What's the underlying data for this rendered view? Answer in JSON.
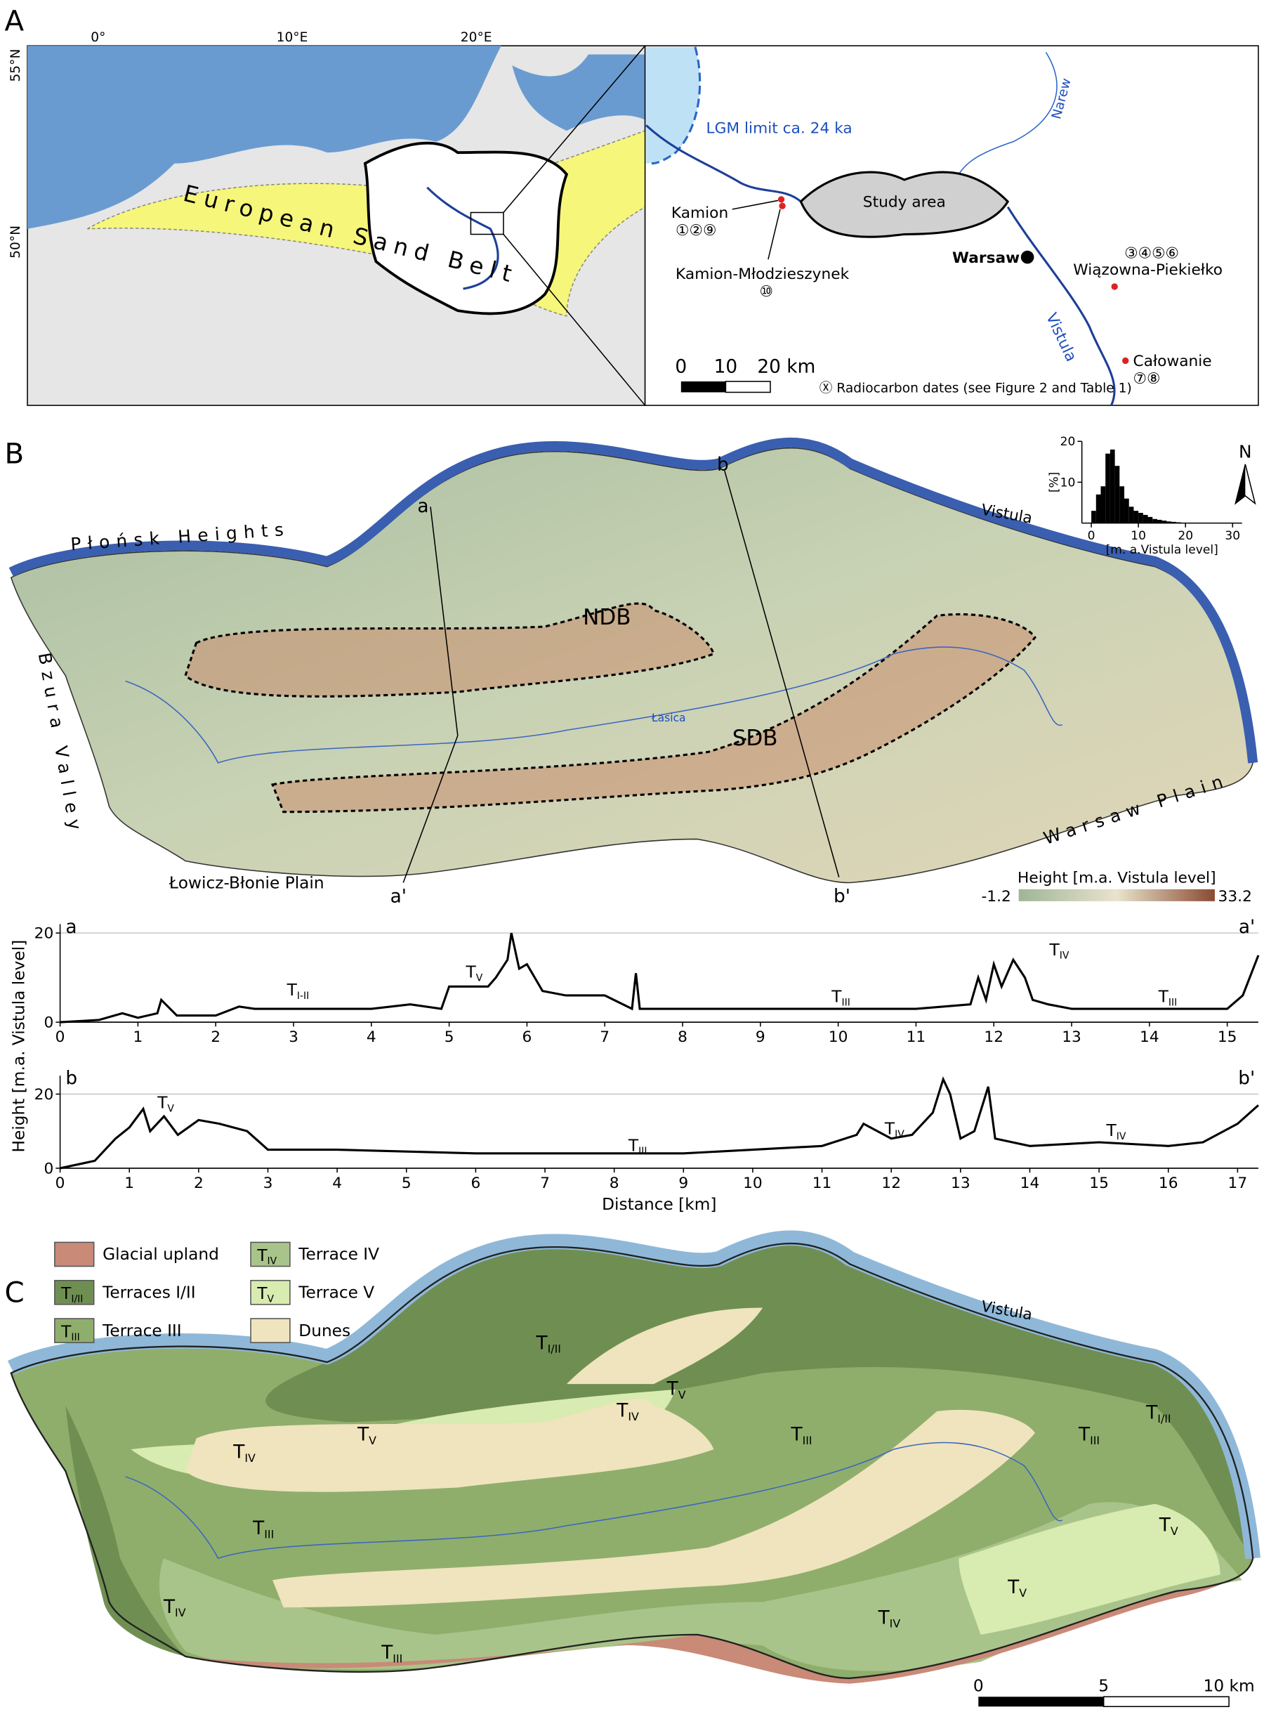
{
  "panel_a": {
    "label": "A",
    "lon_labels": [
      "0°",
      "10°E",
      "20°E"
    ],
    "lat_labels": [
      "55°N",
      "50°N"
    ],
    "belt": "European Sand Belt",
    "lgm": "LGM limit ca. 24 ka",
    "narew": "Narew",
    "study_area": "Study area",
    "kamion": "Kamion",
    "kamion_dates": "①②⑨",
    "mlodzieszynek": "Kamion-Młodzieszynek",
    "mlodzieszynek_dates": "⑩",
    "warsaw": "Warsaw",
    "wiazowna_dates": "③④⑤⑥",
    "wiazowna": "Wiązowna-Piekiełko",
    "vistula": "Vistula",
    "calowanie": "Całowanie",
    "calowanie_dates": "⑦⑧",
    "scale": [
      "0",
      "10",
      "20 km"
    ],
    "note": "Ⓧ Radiocarbon dates (see Figure 2 and Table 1)"
  },
  "panel_b": {
    "label": "B",
    "plonsk": "Płońsk Heights",
    "bzura": "Bzura Valley",
    "lowicz": "Łowicz-Błonie Plain",
    "warsaw_plain": "Warsaw Plain",
    "vistula": "Vistula",
    "ndb": "NDB",
    "sdb": "SDB",
    "lasica": "Łasica",
    "sections": [
      "a",
      "a'",
      "b",
      "b'"
    ],
    "north": "N",
    "height_title": "Height [m.a. Vistula level]",
    "height_range": [
      -1.2,
      33.2
    ]
  },
  "chart_data": [
    {
      "type": "histogram",
      "ylabel": "[%]",
      "xlabel": "[m. a.Vistula level]",
      "color": "#000000",
      "bins": [
        0,
        1,
        2,
        3,
        4,
        5,
        6,
        7,
        8,
        9,
        10,
        11,
        12,
        13,
        14,
        15,
        16,
        17,
        18,
        19,
        20
      ],
      "values": [
        3,
        7,
        9,
        17,
        18,
        14,
        9,
        6,
        4,
        3,
        2.5,
        2,
        1.5,
        1,
        0.8,
        0.6,
        0.4,
        0.3,
        0.2,
        0.1
      ],
      "xlim": [
        -2,
        32
      ],
      "ylim": [
        0,
        20
      ],
      "xticks": [
        0,
        10,
        20,
        30
      ],
      "yticks": [
        10,
        20
      ]
    },
    {
      "type": "line",
      "start_label": "a",
      "end_label": "a'",
      "color": "#000000",
      "x": [
        0,
        0.5,
        0.8,
        1.0,
        1.25,
        1.3,
        1.5,
        2,
        2.3,
        2.5,
        3,
        3.5,
        4,
        4.5,
        4.9,
        5.0,
        5.5,
        5.6,
        5.75,
        5.8,
        5.9,
        6.0,
        6.2,
        6.5,
        7,
        7.35,
        7.4,
        7.45,
        8,
        9,
        10,
        11,
        11.7,
        11.8,
        11.9,
        12.0,
        12.1,
        12.25,
        12.4,
        12.5,
        12.7,
        13,
        14,
        15,
        15.2,
        15.4
      ],
      "values": [
        0,
        0.5,
        2,
        1,
        2,
        5,
        1.5,
        1.5,
        3.5,
        3,
        3,
        3,
        3,
        4,
        3,
        8,
        8,
        10,
        14,
        20,
        12,
        13,
        7,
        6,
        6,
        3,
        11,
        3,
        3,
        3,
        3,
        3,
        4,
        10,
        5,
        13,
        8,
        14,
        10,
        5,
        4,
        3,
        3,
        3,
        6,
        15
      ],
      "annotations": [
        {
          "base": "T",
          "sub": "I-II"
        },
        {
          "base": "T",
          "sub": "V"
        },
        {
          "base": "T",
          "sub": "III"
        },
        {
          "base": "T",
          "sub": "IV"
        },
        {
          "base": "T",
          "sub": "III"
        }
      ],
      "xlim": [
        0,
        15.4
      ],
      "ylim": [
        0,
        22
      ],
      "xticks": [
        0,
        1,
        2,
        3,
        4,
        5,
        6,
        7,
        8,
        9,
        10,
        11,
        12,
        13,
        14,
        15
      ],
      "yticks": [
        0,
        20
      ],
      "grid": true
    },
    {
      "type": "line",
      "start_label": "b",
      "end_label": "b'",
      "color": "#000000",
      "xlabel": "Distance [km]",
      "ylabel": "Height [m.a. Vistula level]",
      "x": [
        0,
        0.5,
        0.8,
        1.0,
        1.2,
        1.3,
        1.5,
        1.7,
        2.0,
        2.3,
        2.7,
        3.0,
        4,
        6,
        8,
        9,
        10,
        11,
        11.5,
        11.6,
        12,
        12.3,
        12.6,
        12.75,
        12.85,
        13.0,
        13.2,
        13.4,
        13.5,
        14,
        15,
        16,
        16.5,
        17,
        17.3
      ],
      "values": [
        0,
        2,
        8,
        11,
        16,
        10,
        14,
        9,
        13,
        12,
        10,
        5,
        5,
        4,
        4,
        4,
        5,
        6,
        9,
        12,
        8,
        9,
        15,
        24,
        20,
        8,
        10,
        22,
        8,
        6,
        7,
        6,
        7,
        12,
        17
      ],
      "annotations": [
        {
          "base": "T",
          "sub": "V"
        },
        {
          "base": "T",
          "sub": "III"
        },
        {
          "base": "T",
          "sub": "IV"
        },
        {
          "base": "T",
          "sub": "IV"
        }
      ],
      "xlim": [
        0,
        17.3
      ],
      "ylim": [
        0,
        25
      ],
      "xticks": [
        0,
        1,
        2,
        3,
        4,
        5,
        6,
        7,
        8,
        9,
        10,
        11,
        12,
        13,
        14,
        15,
        16,
        17
      ],
      "yticks": [
        0,
        20
      ],
      "grid": true
    }
  ],
  "panel_c": {
    "label": "C",
    "legend": [
      {
        "name": "Glacial upland",
        "color": "#c98a78"
      },
      {
        "name": "Terraces I/II",
        "color": "#6f8f52",
        "base": "T",
        "sub": "I/II"
      },
      {
        "name": "Terrace III",
        "color": "#8fae6c",
        "base": "T",
        "sub": "III"
      },
      {
        "name": "Terrace IV",
        "color": "#a9c48a",
        "base": "T",
        "sub": "IV"
      },
      {
        "name": "Terrace V",
        "color": "#d8ebb0",
        "base": "T",
        "sub": "V"
      },
      {
        "name": "Dunes",
        "color": "#efe4bd"
      }
    ],
    "vistula": "Vistula",
    "map_labels": [
      {
        "base": "T",
        "sub": "I/II"
      },
      {
        "base": "T",
        "sub": "V"
      },
      {
        "base": "T",
        "sub": "IV"
      },
      {
        "base": "T",
        "sub": "V"
      },
      {
        "base": "T",
        "sub": "IV"
      },
      {
        "base": "T",
        "sub": "III"
      },
      {
        "base": "T",
        "sub": "III"
      },
      {
        "base": "T",
        "sub": "I/II"
      },
      {
        "base": "T",
        "sub": "III"
      },
      {
        "base": "T",
        "sub": "V"
      },
      {
        "base": "T",
        "sub": "V"
      },
      {
        "base": "T",
        "sub": "IV"
      },
      {
        "base": "T",
        "sub": "IV"
      },
      {
        "base": "T",
        "sub": "III"
      }
    ],
    "scale": [
      "0",
      "5",
      "10 km"
    ]
  }
}
